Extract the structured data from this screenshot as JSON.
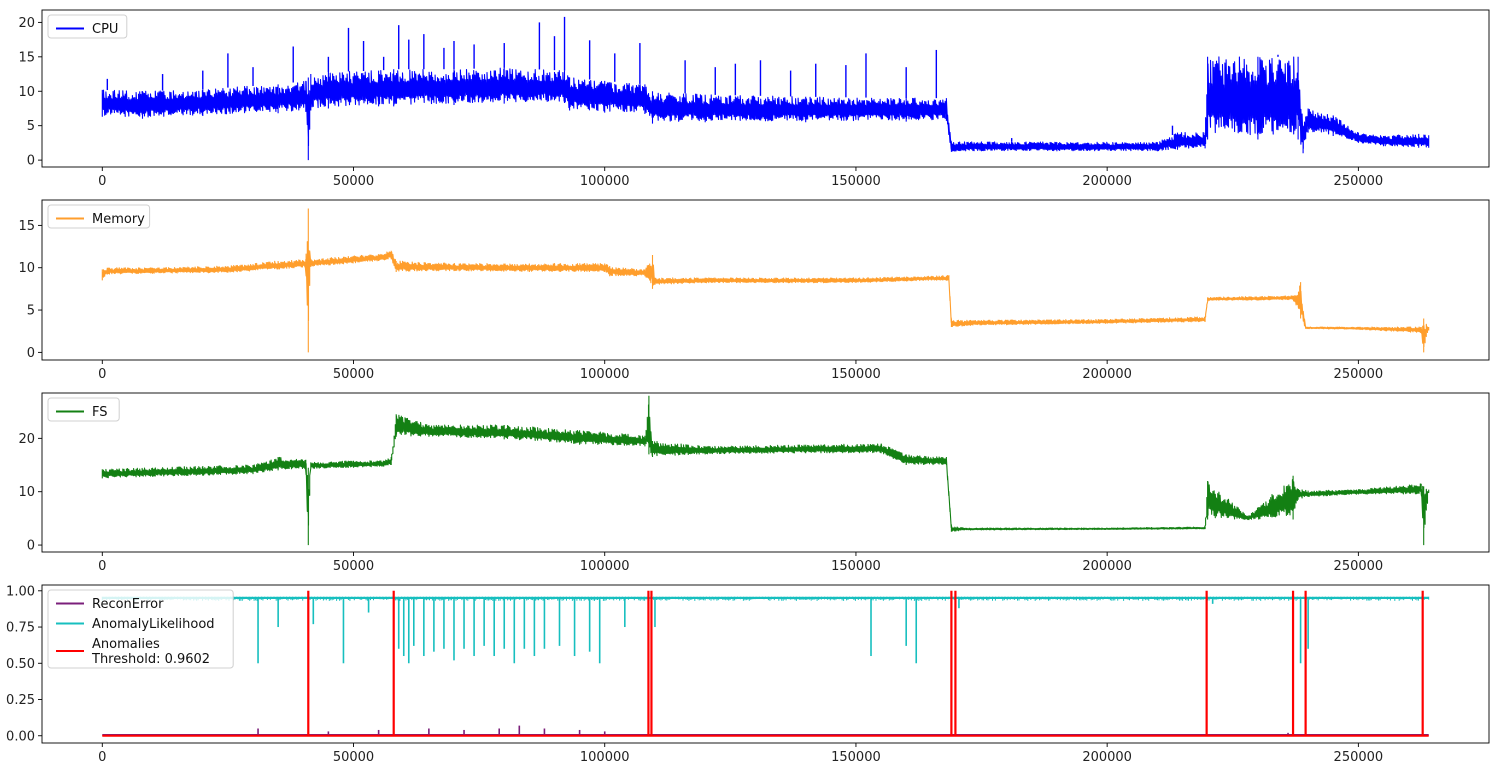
{
  "chart_data": [
    {
      "type": "line",
      "title": "",
      "xlabel": "",
      "ylabel": "",
      "xlim": [
        -12000,
        276000
      ],
      "ylim": [
        -1.0,
        21.8
      ],
      "xticks": [
        0,
        50000,
        100000,
        150000,
        200000,
        250000
      ],
      "yticks": [
        0,
        5,
        10,
        15,
        20
      ],
      "grid": false,
      "legend_position": "top-left",
      "series": [
        {
          "name": "CPU",
          "color": "#0000ff",
          "envelope": {
            "x": [
              0,
              8000,
              20000,
              35000,
              40500,
              41000,
              41500,
              45000,
              55000,
              58000,
              70000,
              80000,
              92000,
              93000,
              100000,
              108000,
              109500,
              120000,
              140000,
              160000,
              168000,
              169000,
              175000,
              190000,
              210000,
              214000,
              219500,
              220000,
              230000,
              238000,
              239000,
              240000,
              245000,
              250000,
              255000,
              262000,
              264000
            ],
            "low": [
              6.3,
              6.0,
              6.4,
              6.8,
              7.0,
              0.0,
              7.2,
              7.5,
              7.8,
              7.8,
              8.0,
              8.2,
              8.3,
              7.2,
              6.9,
              6.7,
              5.3,
              5.5,
              5.5,
              5.6,
              5.7,
              1.2,
              1.3,
              1.3,
              1.3,
              1.5,
              1.7,
              3.0,
              3.0,
              3.0,
              1.0,
              4.0,
              3.5,
              2.5,
              2.0,
              1.8,
              1.8
            ],
            "high": [
              10.2,
              10.0,
              10.3,
              11.0,
              11.5,
              12.0,
              12.5,
              12.8,
              13.0,
              13.2,
              13.2,
              13.4,
              13.0,
              12.0,
              11.5,
              11.0,
              10.0,
              9.5,
              9.2,
              9.0,
              9.0,
              2.6,
              2.7,
              2.6,
              2.6,
              4.0,
              4.0,
              15.0,
              15.0,
              15.0,
              5.0,
              7.5,
              6.5,
              4.0,
              3.5,
              3.8,
              3.6
            ]
          },
          "spikes": [
            {
              "x": 1000,
              "y": 11.8
            },
            {
              "x": 12000,
              "y": 12.5
            },
            {
              "x": 20000,
              "y": 13.0
            },
            {
              "x": 25000,
              "y": 15.5
            },
            {
              "x": 30000,
              "y": 13.5
            },
            {
              "x": 38000,
              "y": 16.5
            },
            {
              "x": 45000,
              "y": 15.0
            },
            {
              "x": 49000,
              "y": 19.2
            },
            {
              "x": 52000,
              "y": 17.3
            },
            {
              "x": 56000,
              "y": 15.0
            },
            {
              "x": 59000,
              "y": 19.6
            },
            {
              "x": 61000,
              "y": 17.5
            },
            {
              "x": 64000,
              "y": 18.3
            },
            {
              "x": 68000,
              "y": 16.3
            },
            {
              "x": 70000,
              "y": 17.3
            },
            {
              "x": 74000,
              "y": 16.8
            },
            {
              "x": 80000,
              "y": 17.0
            },
            {
              "x": 87000,
              "y": 20.0
            },
            {
              "x": 90000,
              "y": 18.0
            },
            {
              "x": 92000,
              "y": 20.8
            },
            {
              "x": 97000,
              "y": 17.4
            },
            {
              "x": 102000,
              "y": 15.5
            },
            {
              "x": 107000,
              "y": 17.0
            },
            {
              "x": 116000,
              "y": 14.5
            },
            {
              "x": 122000,
              "y": 13.5
            },
            {
              "x": 126000,
              "y": 14.0
            },
            {
              "x": 131000,
              "y": 14.5
            },
            {
              "x": 137000,
              "y": 13.0
            },
            {
              "x": 142000,
              "y": 14.0
            },
            {
              "x": 148000,
              "y": 13.8
            },
            {
              "x": 152000,
              "y": 15.5
            },
            {
              "x": 160000,
              "y": 13.5
            },
            {
              "x": 166000,
              "y": 16.0
            },
            {
              "x": 181000,
              "y": 3.2
            },
            {
              "x": 213000,
              "y": 5.0
            },
            {
              "x": 234000,
              "y": 15.3
            }
          ]
        }
      ]
    },
    {
      "type": "line",
      "title": "",
      "xlabel": "",
      "ylabel": "",
      "xlim": [
        -12000,
        276000
      ],
      "ylim": [
        -0.9,
        18.0
      ],
      "xticks": [
        0,
        50000,
        100000,
        150000,
        200000,
        250000
      ],
      "yticks": [
        0,
        5,
        10,
        15
      ],
      "grid": false,
      "legend_position": "top-left",
      "series": [
        {
          "name": "Memory",
          "color": "#ff9e2c",
          "envelope": {
            "x": [
              0,
              1000,
              10000,
              25000,
              35000,
              40500,
              41000,
              41500,
              48000,
              55000,
              57500,
              58500,
              70000,
              85000,
              100000,
              101000,
              108000,
              109500,
              110000,
              120000,
              150000,
              165000,
              168500,
              169000,
              175000,
              200000,
              219500,
              220000,
              237000,
              238500,
              239500,
              250000,
              262500,
              263000,
              264000
            ],
            "low": [
              8.5,
              9.2,
              9.3,
              9.4,
              9.8,
              10.0,
              0.0,
              10.1,
              10.4,
              10.8,
              11.0,
              9.5,
              9.6,
              9.5,
              9.5,
              9.0,
              9.0,
              7.5,
              8.0,
              8.2,
              8.2,
              8.5,
              8.4,
              3.0,
              3.2,
              3.4,
              3.6,
              6.1,
              6.2,
              4.0,
              2.8,
              2.7,
              2.3,
              0.0,
              2.6
            ],
            "high": [
              9.8,
              10.0,
              10.0,
              10.2,
              10.8,
              11.0,
              17.0,
              11.0,
              11.3,
              11.6,
              12.0,
              10.8,
              10.5,
              10.5,
              10.5,
              10.2,
              9.8,
              11.5,
              8.8,
              8.8,
              8.8,
              9.0,
              9.1,
              3.8,
              3.8,
              3.9,
              4.2,
              6.5,
              6.7,
              8.3,
              3.0,
              3.0,
              3.0,
              4.0,
              3.0
            ]
          },
          "spikes": []
        }
      ]
    },
    {
      "type": "line",
      "title": "",
      "xlabel": "",
      "ylabel": "",
      "xlim": [
        -12000,
        276000
      ],
      "ylim": [
        -1.3,
        28.5
      ],
      "xticks": [
        0,
        50000,
        100000,
        150000,
        200000,
        250000
      ],
      "yticks": [
        0,
        10,
        20
      ],
      "grid": false,
      "legend_position": "top-left",
      "series": [
        {
          "name": "FS",
          "color": "#138013",
          "envelope": {
            "x": [
              0,
              10000,
              20000,
              30000,
              35000,
              40500,
              41000,
              41500,
              50000,
              56000,
              57500,
              58500,
              65000,
              80000,
              95000,
              108000,
              108800,
              109500,
              120000,
              140000,
              155000,
              160000,
              168000,
              169000,
              172000,
              200000,
              219500,
              220000,
              228000,
              237000,
              238000,
              240000,
              250000,
              262500,
              263000,
              264000
            ],
            "low": [
              12.5,
              12.8,
              13.0,
              13.3,
              14.0,
              14.2,
              0.0,
              14.3,
              14.5,
              14.7,
              15.0,
              20.3,
              20.3,
              19.8,
              18.8,
              18.5,
              17.0,
              16.5,
              17.0,
              17.2,
              17.2,
              15.0,
              15.0,
              2.5,
              2.8,
              2.9,
              3.0,
              4.8,
              4.7,
              4.8,
              8.5,
              9.0,
              9.5,
              9.5,
              0.0,
              9.8
            ],
            "high": [
              14.2,
              14.5,
              14.8,
              15.0,
              16.5,
              16.0,
              14.5,
              15.5,
              15.8,
              15.8,
              16.5,
              24.5,
              22.5,
              22.5,
              21.5,
              20.5,
              28.0,
              19.5,
              18.5,
              18.8,
              19.0,
              17.0,
              16.5,
              3.5,
              3.2,
              3.2,
              3.4,
              12.0,
              5.5,
              13.0,
              10.5,
              10.2,
              10.4,
              11.5,
              11.0,
              10.4
            ]
          },
          "spikes": []
        }
      ]
    },
    {
      "type": "line",
      "title": "",
      "xlabel": "",
      "ylabel": "",
      "xlim": [
        -12000,
        276000
      ],
      "ylim": [
        -0.05,
        1.04
      ],
      "xticks": [
        0,
        50000,
        100000,
        150000,
        200000,
        250000
      ],
      "yticks": [
        0.0,
        0.25,
        0.5,
        0.75,
        1.0
      ],
      "grid": false,
      "legend_position": "top-left",
      "series": [
        {
          "name": "ReconError",
          "color": "#7b1f7b",
          "baseline": 0.005,
          "bumps": [
            {
              "x": 31000,
              "y": 0.05
            },
            {
              "x": 45000,
              "y": 0.03
            },
            {
              "x": 55000,
              "y": 0.04
            },
            {
              "x": 65000,
              "y": 0.05
            },
            {
              "x": 72000,
              "y": 0.04
            },
            {
              "x": 79000,
              "y": 0.05
            },
            {
              "x": 83000,
              "y": 0.07
            },
            {
              "x": 88000,
              "y": 0.05
            },
            {
              "x": 95000,
              "y": 0.04
            },
            {
              "x": 100000,
              "y": 0.03
            },
            {
              "x": 236000,
              "y": 0.02
            }
          ]
        },
        {
          "name": "AnomalyLikelihood",
          "color": "#17bfbf",
          "baseline": 0.95,
          "dips": [
            {
              "x": 31000,
              "y": 0.5
            },
            {
              "x": 35000,
              "y": 0.75
            },
            {
              "x": 42000,
              "y": 0.77
            },
            {
              "x": 48000,
              "y": 0.5
            },
            {
              "x": 53000,
              "y": 0.85
            },
            {
              "x": 59000,
              "y": 0.6
            },
            {
              "x": 60000,
              "y": 0.55
            },
            {
              "x": 61000,
              "y": 0.5
            },
            {
              "x": 62000,
              "y": 0.62
            },
            {
              "x": 64000,
              "y": 0.55
            },
            {
              "x": 66000,
              "y": 0.58
            },
            {
              "x": 68000,
              "y": 0.6
            },
            {
              "x": 70000,
              "y": 0.52
            },
            {
              "x": 72000,
              "y": 0.6
            },
            {
              "x": 74000,
              "y": 0.55
            },
            {
              "x": 76000,
              "y": 0.62
            },
            {
              "x": 78000,
              "y": 0.55
            },
            {
              "x": 80000,
              "y": 0.6
            },
            {
              "x": 82000,
              "y": 0.5
            },
            {
              "x": 84000,
              "y": 0.6
            },
            {
              "x": 86000,
              "y": 0.55
            },
            {
              "x": 88000,
              "y": 0.6
            },
            {
              "x": 91000,
              "y": 0.62
            },
            {
              "x": 94000,
              "y": 0.55
            },
            {
              "x": 97000,
              "y": 0.58
            },
            {
              "x": 99000,
              "y": 0.5
            },
            {
              "x": 104000,
              "y": 0.75
            },
            {
              "x": 110000,
              "y": 0.75
            },
            {
              "x": 153000,
              "y": 0.55
            },
            {
              "x": 160000,
              "y": 0.62
            },
            {
              "x": 162000,
              "y": 0.5
            },
            {
              "x": 170500,
              "y": 0.88
            },
            {
              "x": 221000,
              "y": 0.91
            },
            {
              "x": 238500,
              "y": 0.5
            },
            {
              "x": 240000,
              "y": 0.6
            }
          ]
        },
        {
          "name": "Anomalies\nThreshold: 0.9602",
          "color": "#ff0000",
          "baseline": 0.0,
          "spikes": [
            {
              "x": 41000,
              "y": 1.0
            },
            {
              "x": 58000,
              "y": 1.0
            },
            {
              "x": 108700,
              "y": 1.0
            },
            {
              "x": 109300,
              "y": 1.0
            },
            {
              "x": 169000,
              "y": 1.0
            },
            {
              "x": 169800,
              "y": 1.0
            },
            {
              "x": 219800,
              "y": 1.0
            },
            {
              "x": 237000,
              "y": 1.0
            },
            {
              "x": 239500,
              "y": 1.0
            },
            {
              "x": 262800,
              "y": 1.0
            }
          ]
        }
      ]
    }
  ]
}
